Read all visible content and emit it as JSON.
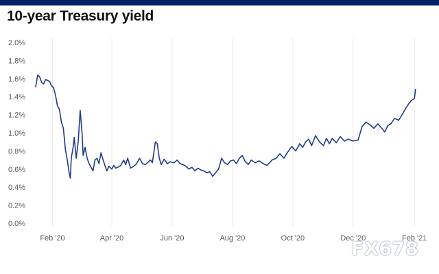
{
  "header": {
    "brand_bar_color": "#012169"
  },
  "watermark": {
    "text": "FX678"
  },
  "chart_data": {
    "type": "line",
    "title": "10-year Treasury yield",
    "xlabel": "",
    "ylabel": "",
    "x_range": [
      "2020-01-15",
      "2021-02-05"
    ],
    "ylim": [
      0,
      2.0
    ],
    "y_ticks": [
      {
        "value": 0.0,
        "label": "0.0%"
      },
      {
        "value": 0.2,
        "label": "0.2%"
      },
      {
        "value": 0.4,
        "label": "0.4%"
      },
      {
        "value": 0.6,
        "label": "0.6%"
      },
      {
        "value": 0.8,
        "label": "0.8%"
      },
      {
        "value": 1.0,
        "label": "1.0%"
      },
      {
        "value": 1.2,
        "label": "1.2%"
      },
      {
        "value": 1.4,
        "label": "1.4%"
      },
      {
        "value": 1.6,
        "label": "1.6%"
      },
      {
        "value": 1.8,
        "label": "1.8%"
      },
      {
        "value": 2.0,
        "label": "2.0%"
      }
    ],
    "x_ticks": [
      {
        "date": "2020-02-01",
        "label": "Feb '20"
      },
      {
        "date": "2020-04-01",
        "label": "Apr '20"
      },
      {
        "date": "2020-06-01",
        "label": "Jun '20"
      },
      {
        "date": "2020-08-01",
        "label": "Aug '20"
      },
      {
        "date": "2020-10-01",
        "label": "Oct '20"
      },
      {
        "date": "2020-12-01",
        "label": "Dec '20"
      },
      {
        "date": "2021-02-01",
        "label": "Feb '21"
      }
    ],
    "grid": "vertical",
    "line_color": "#1f3a8a",
    "series": [
      {
        "points": [
          [
            "2020-01-15",
            1.51
          ],
          [
            "2020-01-17",
            1.64
          ],
          [
            "2020-01-19",
            1.62
          ],
          [
            "2020-01-21",
            1.56
          ],
          [
            "2020-01-23",
            1.54
          ],
          [
            "2020-01-25",
            1.59
          ],
          [
            "2020-01-27",
            1.58
          ],
          [
            "2020-01-29",
            1.57
          ],
          [
            "2020-01-31",
            1.52
          ],
          [
            "2020-02-02",
            1.5
          ],
          [
            "2020-02-04",
            1.42
          ],
          [
            "2020-02-06",
            1.3
          ],
          [
            "2020-02-08",
            1.26
          ],
          [
            "2020-02-10",
            1.12
          ],
          [
            "2020-02-12",
            1.05
          ],
          [
            "2020-02-14",
            0.82
          ],
          [
            "2020-02-16",
            0.7
          ],
          [
            "2020-02-18",
            0.55
          ],
          [
            "2020-02-19",
            0.5
          ],
          [
            "2020-02-20",
            0.72
          ],
          [
            "2020-02-22",
            0.85
          ],
          [
            "2020-02-23",
            0.95
          ],
          [
            "2020-02-25",
            0.72
          ],
          [
            "2020-02-27",
            0.9
          ],
          [
            "2020-02-29",
            1.25
          ],
          [
            "2020-03-02",
            0.98
          ],
          [
            "2020-03-03",
            0.75
          ],
          [
            "2020-03-05",
            0.84
          ],
          [
            "2020-03-07",
            0.72
          ],
          [
            "2020-03-09",
            0.66
          ],
          [
            "2020-03-11",
            0.62
          ],
          [
            "2020-03-13",
            0.58
          ],
          [
            "2020-03-15",
            0.7
          ],
          [
            "2020-03-17",
            0.72
          ],
          [
            "2020-03-19",
            0.66
          ],
          [
            "2020-03-21",
            0.78
          ],
          [
            "2020-03-23",
            0.71
          ],
          [
            "2020-03-25",
            0.64
          ],
          [
            "2020-03-27",
            0.58
          ],
          [
            "2020-03-29",
            0.63
          ],
          [
            "2020-04-01",
            0.6
          ],
          [
            "2020-04-03",
            0.64
          ],
          [
            "2020-04-05",
            0.61
          ],
          [
            "2020-04-07",
            0.62
          ],
          [
            "2020-04-10",
            0.64
          ],
          [
            "2020-04-13",
            0.7
          ],
          [
            "2020-04-15",
            0.65
          ],
          [
            "2020-04-17",
            0.72
          ],
          [
            "2020-04-20",
            0.61
          ],
          [
            "2020-04-23",
            0.63
          ],
          [
            "2020-04-26",
            0.66
          ],
          [
            "2020-04-29",
            0.72
          ],
          [
            "2020-05-02",
            0.66
          ],
          [
            "2020-05-05",
            0.65
          ],
          [
            "2020-05-08",
            0.68
          ],
          [
            "2020-05-10",
            0.7
          ],
          [
            "2020-05-12",
            0.67
          ],
          [
            "2020-05-15",
            0.9
          ],
          [
            "2020-05-17",
            0.88
          ],
          [
            "2020-05-19",
            0.72
          ],
          [
            "2020-05-21",
            0.65
          ],
          [
            "2020-05-24",
            0.71
          ],
          [
            "2020-05-27",
            0.66
          ],
          [
            "2020-05-30",
            0.68
          ],
          [
            "2020-06-03",
            0.67
          ],
          [
            "2020-06-06",
            0.7
          ],
          [
            "2020-06-09",
            0.66
          ],
          [
            "2020-06-12",
            0.65
          ],
          [
            "2020-06-15",
            0.63
          ],
          [
            "2020-06-18",
            0.6
          ],
          [
            "2020-06-21",
            0.62
          ],
          [
            "2020-06-24",
            0.58
          ],
          [
            "2020-06-27",
            0.61
          ],
          [
            "2020-06-30",
            0.59
          ],
          [
            "2020-07-03",
            0.58
          ],
          [
            "2020-07-06",
            0.56
          ],
          [
            "2020-07-09",
            0.57
          ],
          [
            "2020-07-12",
            0.52
          ],
          [
            "2020-07-15",
            0.56
          ],
          [
            "2020-07-18",
            0.6
          ],
          [
            "2020-07-21",
            0.72
          ],
          [
            "2020-07-24",
            0.67
          ],
          [
            "2020-07-27",
            0.65
          ],
          [
            "2020-07-30",
            0.69
          ],
          [
            "2020-08-02",
            0.7
          ],
          [
            "2020-08-05",
            0.66
          ],
          [
            "2020-08-08",
            0.72
          ],
          [
            "2020-08-11",
            0.75
          ],
          [
            "2020-08-14",
            0.68
          ],
          [
            "2020-08-17",
            0.65
          ],
          [
            "2020-08-20",
            0.7
          ],
          [
            "2020-08-24",
            0.67
          ],
          [
            "2020-08-28",
            0.69
          ],
          [
            "2020-09-01",
            0.66
          ],
          [
            "2020-09-05",
            0.64
          ],
          [
            "2020-09-10",
            0.7
          ],
          [
            "2020-09-14",
            0.72
          ],
          [
            "2020-09-18",
            0.77
          ],
          [
            "2020-09-22",
            0.72
          ],
          [
            "2020-09-26",
            0.79
          ],
          [
            "2020-09-30",
            0.85
          ],
          [
            "2020-10-04",
            0.8
          ],
          [
            "2020-10-08",
            0.88
          ],
          [
            "2020-10-11",
            0.84
          ],
          [
            "2020-10-14",
            0.9
          ],
          [
            "2020-10-17",
            0.93
          ],
          [
            "2020-10-20",
            0.86
          ],
          [
            "2020-10-24",
            0.97
          ],
          [
            "2020-10-28",
            0.9
          ],
          [
            "2020-11-01",
            0.86
          ],
          [
            "2020-11-04",
            0.94
          ],
          [
            "2020-11-07",
            0.88
          ],
          [
            "2020-11-10",
            0.94
          ],
          [
            "2020-11-14",
            0.89
          ],
          [
            "2020-11-18",
            0.96
          ],
          [
            "2020-11-22",
            0.91
          ],
          [
            "2020-11-26",
            0.93
          ],
          [
            "2020-12-01",
            0.91
          ],
          [
            "2020-12-06",
            0.92
          ],
          [
            "2020-12-10",
            1.07
          ],
          [
            "2020-12-14",
            1.12
          ],
          [
            "2020-12-18",
            1.09
          ],
          [
            "2020-12-22",
            1.05
          ],
          [
            "2020-12-26",
            1.1
          ],
          [
            "2020-12-30",
            1.05
          ],
          [
            "2021-01-02",
            1.01
          ],
          [
            "2021-01-05",
            1.08
          ],
          [
            "2021-01-08",
            1.1
          ],
          [
            "2021-01-12",
            1.16
          ],
          [
            "2021-01-16",
            1.14
          ],
          [
            "2021-01-20",
            1.21
          ],
          [
            "2021-01-23",
            1.27
          ],
          [
            "2021-01-26",
            1.32
          ],
          [
            "2021-01-29",
            1.36
          ],
          [
            "2021-02-01",
            1.38
          ],
          [
            "2021-02-02",
            1.48
          ]
        ]
      }
    ]
  }
}
